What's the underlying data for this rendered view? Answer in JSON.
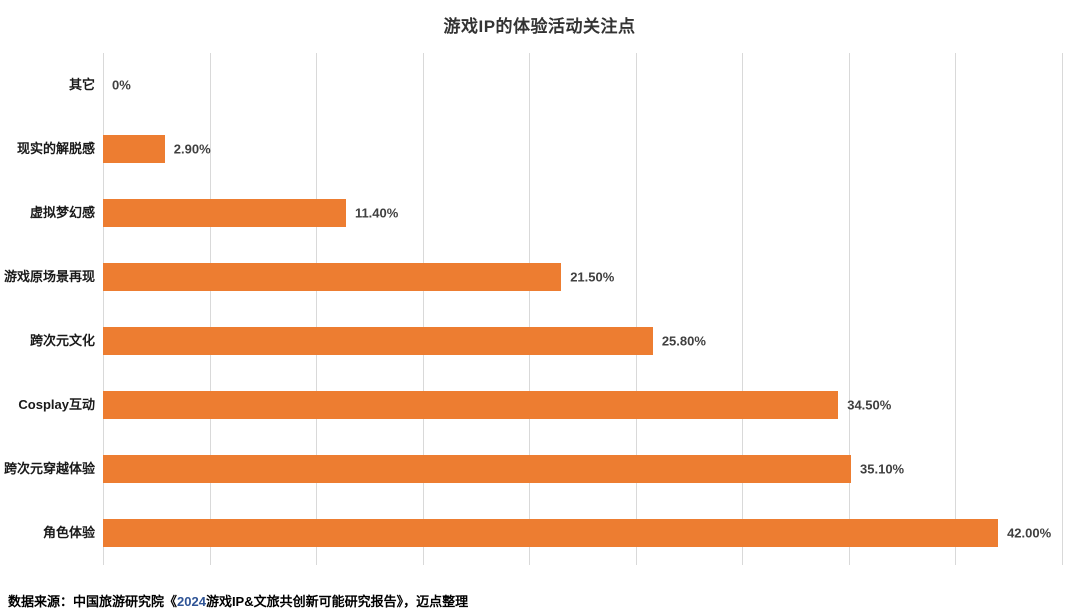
{
  "title": "游戏IP的体验活动关注点",
  "footer": {
    "prefix": "数据来源：中国旅游研究院《",
    "year": "2024",
    "suffix": "游戏IP&文旅共创新可能研究报告》，迈点整理"
  },
  "colors": {
    "bar": "#ED7D31",
    "grid": "#D9D9D9",
    "value_label": "#404040",
    "category_label": "#1A1A1A",
    "title": "#333333",
    "footer_year": "#2F5496",
    "background": "#FFFFFF"
  },
  "chart_data": {
    "type": "bar",
    "orientation": "horizontal",
    "title": "游戏IP的体验活动关注点",
    "categories": [
      "其它",
      "现实的解脱感",
      "虚拟梦幻感",
      "游戏原场景再现",
      "跨次元文化",
      "Cosplay互动",
      "跨次元穿越体验",
      "角色体验"
    ],
    "values": [
      0,
      2.9,
      11.4,
      21.5,
      25.8,
      34.5,
      35.1,
      42.0
    ],
    "value_labels": [
      "0%",
      "2.90%",
      "11.40%",
      "21.50%",
      "25.80%",
      "34.50%",
      "35.10%",
      "42.00%"
    ],
    "xlabel": "",
    "ylabel": "",
    "xlim": [
      0,
      45
    ],
    "gridline_step": 5,
    "grid": true,
    "legend": false,
    "data_labels": true
  }
}
